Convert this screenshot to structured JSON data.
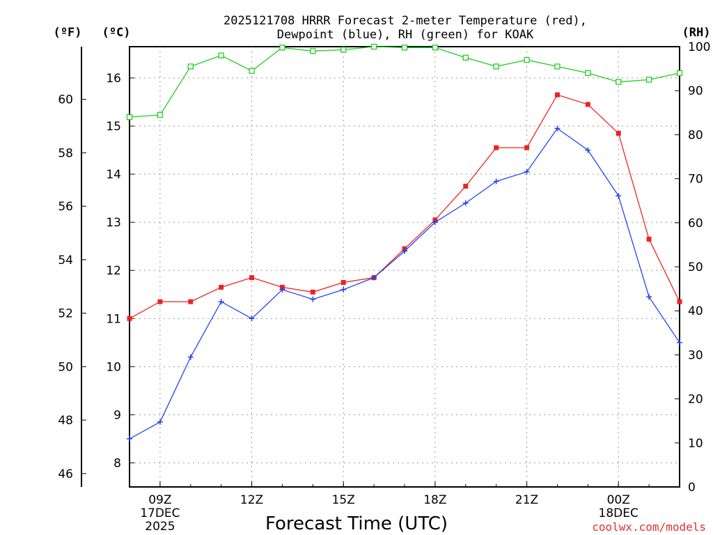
{
  "chart_data": {
    "type": "line",
    "title_line1": "2025121708 HRRR Forecast 2-meter Temperature (red),",
    "title_line2": "Dewpoint (blue), RH (green) for KOAK",
    "xlabel": "Forecast Time (UTC)",
    "credit": "coolwx.com/models",
    "left_axis_f": {
      "unit_label": "(ºF)",
      "ticks": [
        "46",
        "48",
        "50",
        "52",
        "54",
        "56",
        "58",
        "60"
      ],
      "tick_values": [
        46,
        48,
        50,
        52,
        54,
        56,
        58,
        60
      ]
    },
    "left_axis_c": {
      "unit_label": "(ºC)",
      "ylim": [
        7.5,
        16.65
      ],
      "ticks": [
        "8",
        "9",
        "10",
        "11",
        "12",
        "13",
        "14",
        "15",
        "16"
      ],
      "tick_values": [
        8,
        9,
        10,
        11,
        12,
        13,
        14,
        15,
        16
      ]
    },
    "right_axis_rh": {
      "unit_label": "(RH)",
      "ylim": [
        0,
        100
      ],
      "ticks": [
        "0",
        "10",
        "20",
        "30",
        "40",
        "50",
        "60",
        "70",
        "80",
        "90",
        "100"
      ],
      "tick_values": [
        0,
        10,
        20,
        30,
        40,
        50,
        60,
        70,
        80,
        90,
        100
      ]
    },
    "x_hours": [
      8,
      9,
      10,
      11,
      12,
      13,
      14,
      15,
      16,
      17,
      18,
      19,
      20,
      21,
      22,
      23,
      24,
      25,
      26
    ],
    "x_ticks": [
      {
        "hour": 9,
        "label": "09Z",
        "sub1": "17DEC",
        "sub2": "2025"
      },
      {
        "hour": 12,
        "label": "12Z",
        "sub1": "",
        "sub2": ""
      },
      {
        "hour": 15,
        "label": "15Z",
        "sub1": "",
        "sub2": ""
      },
      {
        "hour": 18,
        "label": "18Z",
        "sub1": "",
        "sub2": ""
      },
      {
        "hour": 21,
        "label": "21Z",
        "sub1": "",
        "sub2": ""
      },
      {
        "hour": 24,
        "label": "00Z",
        "sub1": "18DEC",
        "sub2": ""
      }
    ],
    "series": [
      {
        "name": "Temperature",
        "axis": "c",
        "color": "#ee2222",
        "marker": "filled-square",
        "values": [
          11.0,
          11.35,
          11.35,
          11.65,
          11.85,
          11.65,
          11.55,
          11.75,
          11.85,
          12.45,
          13.05,
          13.75,
          14.55,
          14.55,
          15.65,
          15.45,
          14.85,
          12.65,
          11.35
        ]
      },
      {
        "name": "Dewpoint",
        "axis": "c",
        "color": "#2244ee",
        "marker": "plus",
        "values": [
          8.5,
          8.85,
          10.2,
          11.35,
          11.0,
          11.6,
          11.4,
          11.6,
          11.85,
          12.4,
          13.0,
          13.4,
          13.85,
          14.05,
          14.95,
          14.5,
          13.55,
          11.45,
          10.5
        ]
      },
      {
        "name": "RH",
        "axis": "rh",
        "color": "#22cc22",
        "marker": "open-square",
        "values": [
          84,
          84.5,
          95.5,
          98,
          94.5,
          99.8,
          99,
          99.3,
          100,
          99.8,
          99.8,
          97.5,
          95.5,
          97,
          95.5,
          94,
          92,
          92.5,
          94
        ]
      }
    ]
  }
}
